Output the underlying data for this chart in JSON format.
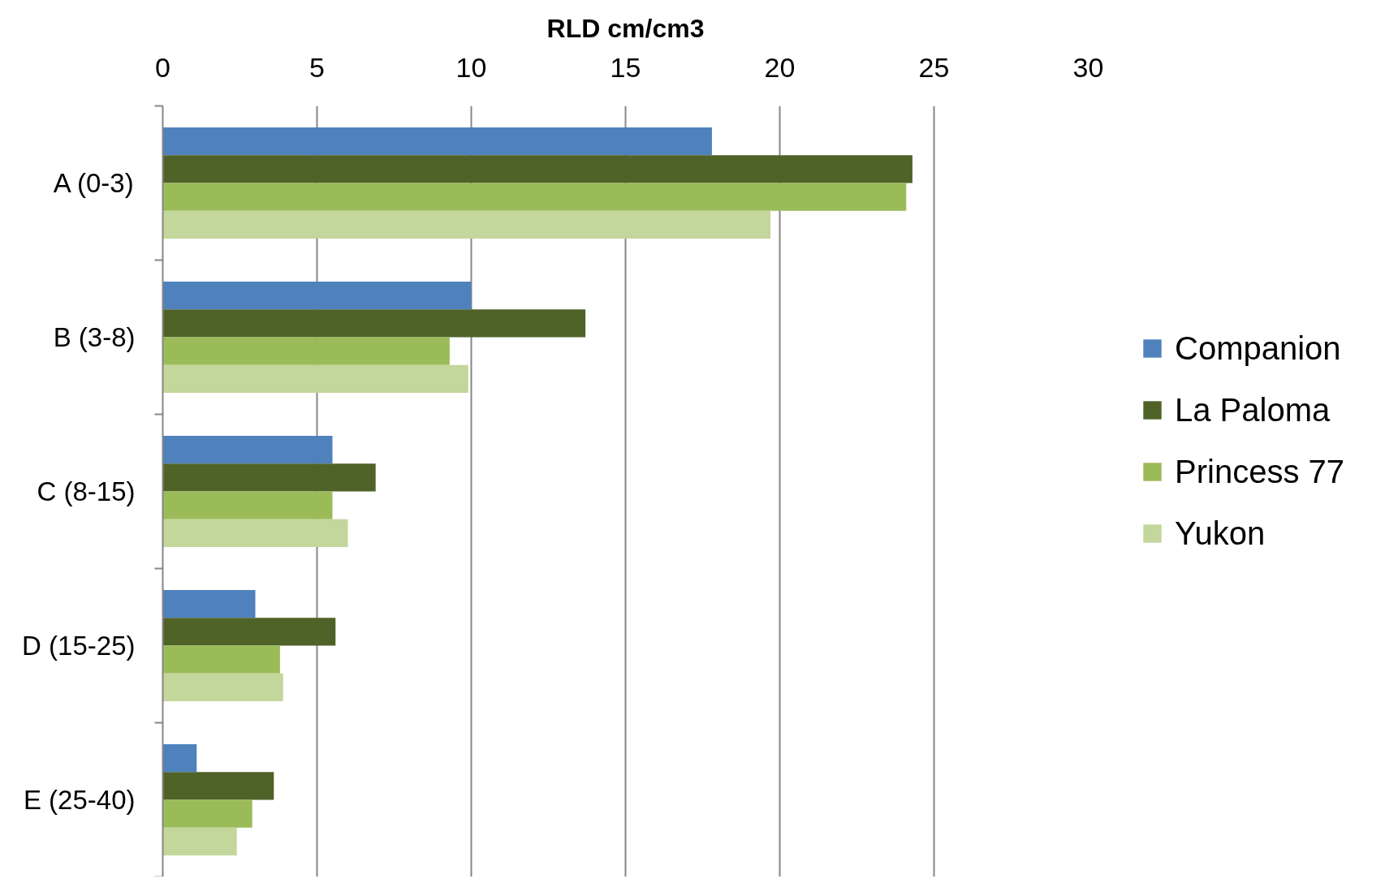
{
  "chart_data": {
    "type": "bar",
    "orientation": "horizontal",
    "xlabel": "RLD cm/cm3",
    "categories": [
      "A (0-3)",
      "B (3-8)",
      "C (8-15)",
      "D (15-25)",
      "E (25-40)"
    ],
    "series": [
      {
        "name": "Companion",
        "color": "#4f81bd",
        "values": [
          17.8,
          10.0,
          5.5,
          3.0,
          1.1
        ]
      },
      {
        "name": "La Paloma",
        "color": "#4f6228",
        "values": [
          24.3,
          13.7,
          6.9,
          5.6,
          3.6
        ]
      },
      {
        "name": "Princess 77",
        "color": "#9bbb59",
        "values": [
          24.1,
          9.3,
          5.5,
          3.8,
          2.9
        ]
      },
      {
        "name": "Yukon",
        "color": "#c3d69b",
        "values": [
          19.7,
          9.9,
          6.0,
          3.9,
          2.4
        ]
      }
    ],
    "xlim": [
      0,
      30
    ],
    "xticks": [
      0,
      5,
      10,
      15,
      20,
      25,
      30
    ],
    "grid": "x",
    "legend": "right"
  }
}
